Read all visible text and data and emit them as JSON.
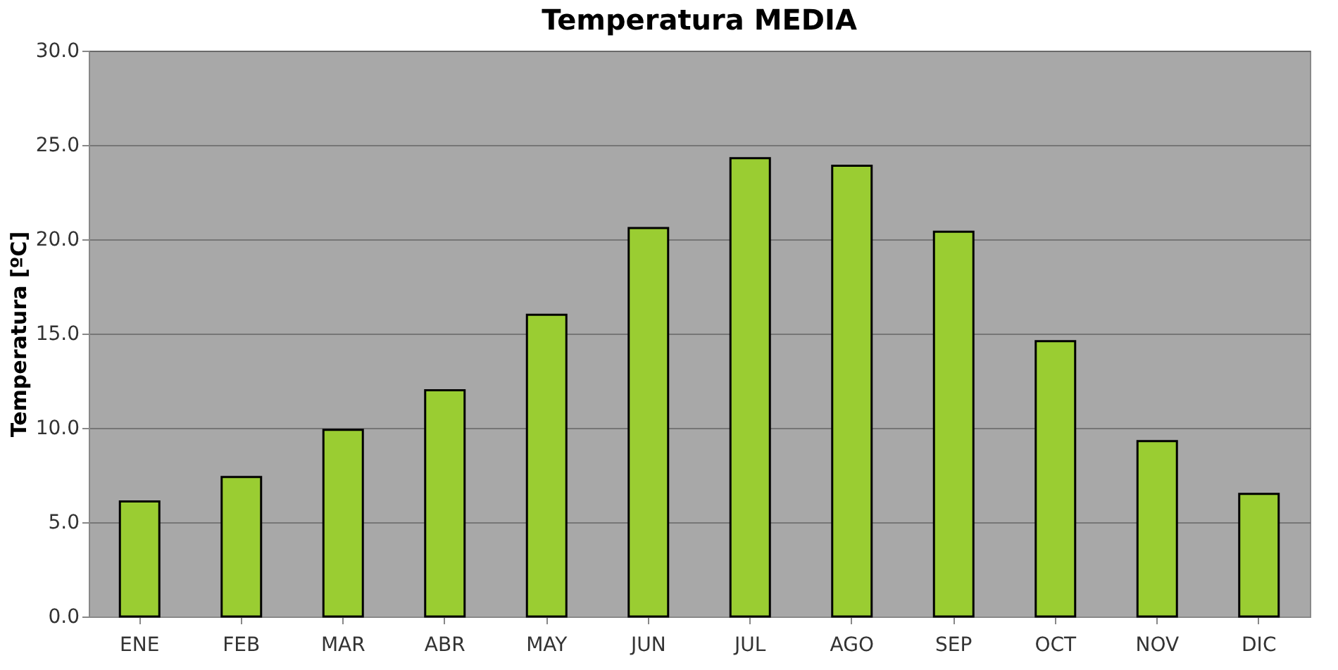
{
  "chart_data": {
    "type": "bar",
    "title": "Temperatura MEDIA",
    "ylabel": "Temperatura [ºC]",
    "categories": [
      "ENE",
      "FEB",
      "MAR",
      "ABR",
      "MAY",
      "JUN",
      "JUL",
      "AGO",
      "SEP",
      "OCT",
      "NOV",
      "DIC"
    ],
    "values": [
      6.1,
      7.4,
      9.9,
      12.0,
      16.0,
      20.6,
      24.3,
      23.9,
      20.4,
      14.6,
      9.3,
      6.5
    ],
    "color": "#9acd32",
    "ylim": [
      0,
      30
    ],
    "yticks": [
      {
        "value": 0,
        "label": "0.0"
      },
      {
        "value": 5,
        "label": "5.0"
      },
      {
        "value": 10,
        "label": "10.0"
      },
      {
        "value": 15,
        "label": "15.0"
      },
      {
        "value": 20,
        "label": "20.0"
      },
      {
        "value": 25,
        "label": "25.0"
      },
      {
        "value": 30,
        "label": "30.0"
      }
    ],
    "grid": "y"
  }
}
